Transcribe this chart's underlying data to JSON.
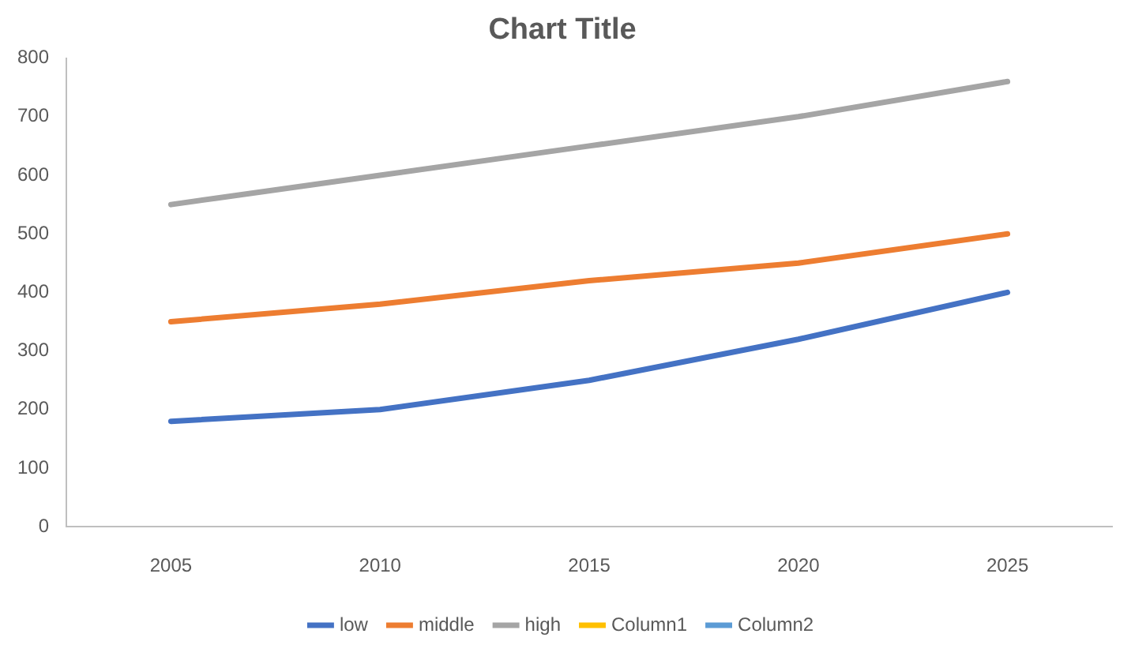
{
  "chart_data": {
    "type": "line",
    "title": "Chart Title",
    "categories": [
      "2005",
      "2010",
      "2015",
      "2020",
      "2025"
    ],
    "series": [
      {
        "name": "low",
        "color": "#4472c4",
        "values": [
          180,
          200,
          250,
          320,
          400
        ]
      },
      {
        "name": "middle",
        "color": "#ed7d31",
        "values": [
          350,
          380,
          420,
          450,
          500
        ]
      },
      {
        "name": "high",
        "color": "#a5a5a5",
        "values": [
          550,
          600,
          650,
          700,
          760
        ]
      },
      {
        "name": "Column1",
        "color": "#ffc000",
        "values": [
          null,
          null,
          null,
          null,
          null
        ]
      },
      {
        "name": "Column2",
        "color": "#5b9bd5",
        "values": [
          null,
          null,
          null,
          null,
          null
        ]
      }
    ],
    "ylim": [
      0,
      800
    ],
    "yticks": [
      0,
      100,
      200,
      300,
      400,
      500,
      600,
      700,
      800
    ],
    "grid": false,
    "legend": "bottom",
    "marker": "none",
    "line_style": "solid"
  }
}
